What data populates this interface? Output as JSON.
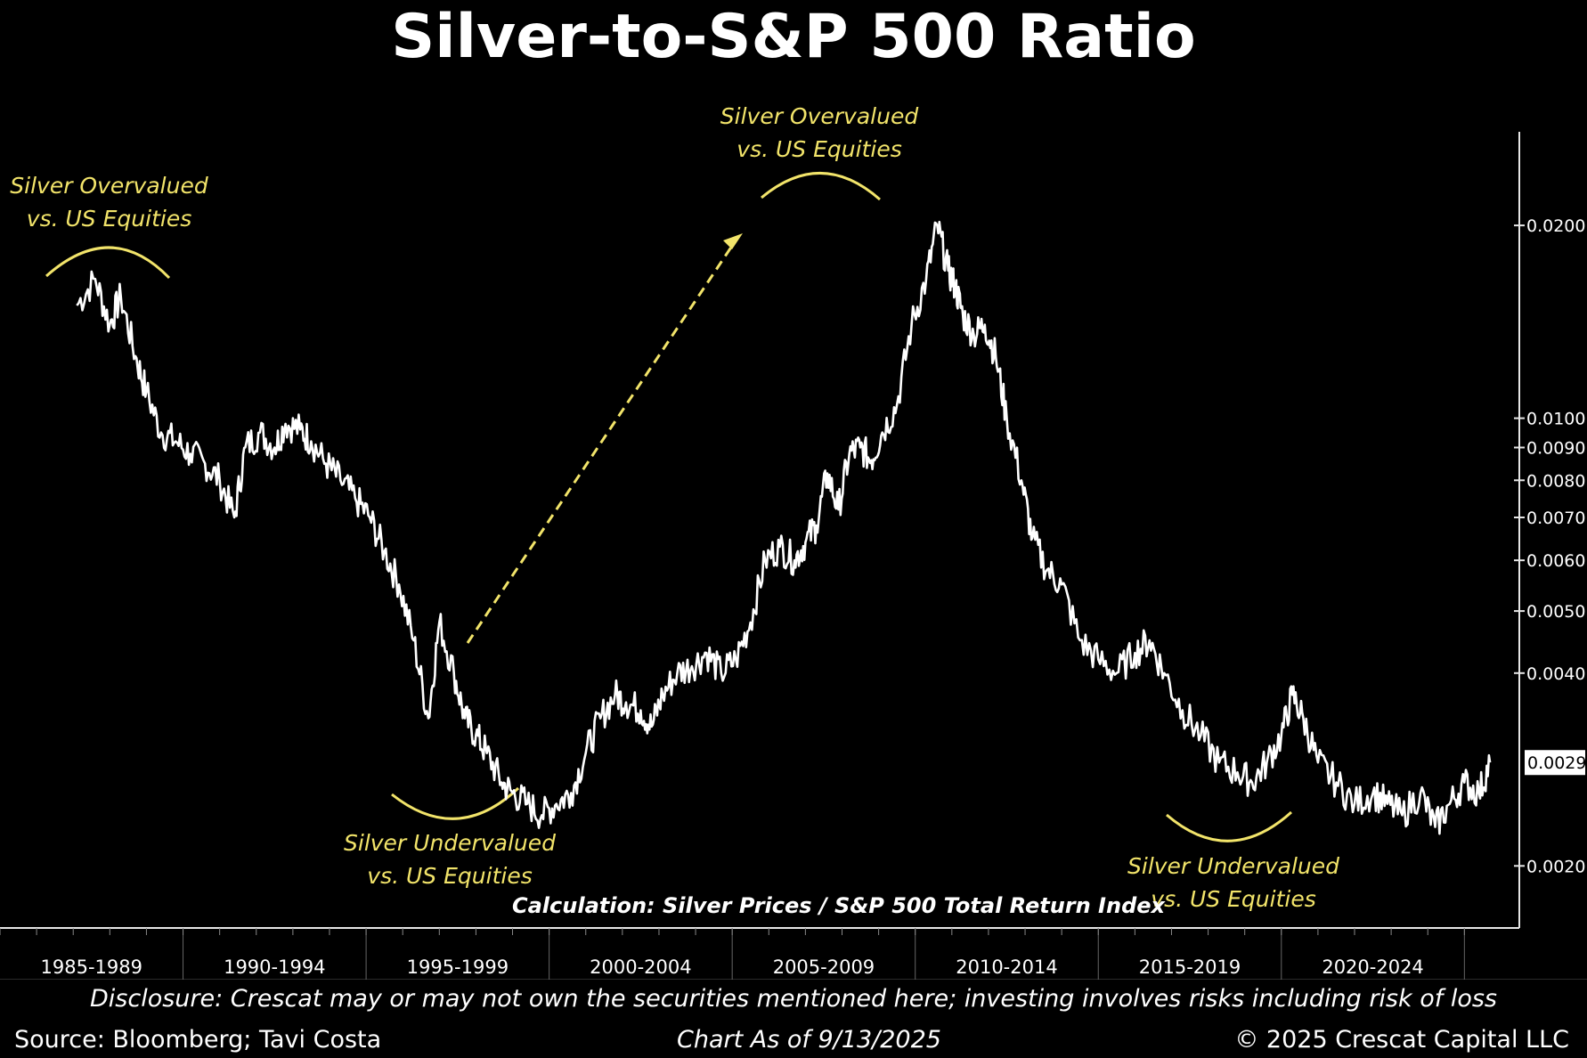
{
  "chart_data": {
    "type": "line",
    "title": "Silver-to-S&P 500 Ratio",
    "y_scale": "log",
    "ylim": [
      0.0016,
      0.028
    ],
    "y_ticks": [
      "0.0020",
      "0.0040",
      "0.0050",
      "0.0060",
      "0.0070",
      "0.0080",
      "0.0090",
      "0.0100",
      "0.0200"
    ],
    "y_tick_values": [
      0.002,
      0.004,
      0.005,
      0.006,
      0.007,
      0.008,
      0.009,
      0.01,
      0.02
    ],
    "last_value_label": "0.0029",
    "last_value": 0.0029,
    "x_categories": [
      "1985-1989",
      "1990-1994",
      "1995-1999",
      "2000-2004",
      "2005-2009",
      "2010-2014",
      "2015-2019",
      "2020-2024"
    ],
    "xlim": [
      1985.0,
      2026.5
    ],
    "series": [
      {
        "x": [
          1987.1,
          1987.6,
          1988.0,
          1988.3,
          1988.7,
          1989.0,
          1989.4,
          1989.8,
          1990.2,
          1990.6,
          1991.0,
          1991.4,
          1991.7,
          1992.1,
          1992.5,
          1992.8,
          1993.2,
          1993.5,
          1993.9,
          1994.3,
          1994.7,
          1995.1,
          1995.5,
          1995.9,
          1996.3,
          1996.7,
          1997.0,
          1997.4,
          1997.7,
          1998.0,
          1998.3,
          1998.7,
          1999.0,
          1999.4,
          1999.8,
          2000.2,
          2000.6,
          2001.0,
          2001.4,
          2001.8,
          2002.1,
          2002.5,
          2002.8,
          2003.1,
          2003.5,
          2003.9,
          2004.3,
          2004.7,
          2005.1,
          2005.5,
          2005.9,
          2006.3,
          2006.7,
          2007.0,
          2007.3,
          2007.6,
          2007.9,
          2008.2,
          2008.5,
          2008.8,
          2009.1,
          2009.5,
          2009.9,
          2010.3,
          2010.6,
          2010.9,
          2011.1,
          2011.3,
          2011.6,
          2011.9,
          2012.2,
          2012.5,
          2012.9,
          2013.2,
          2013.6,
          2014.0,
          2014.5,
          2015.0,
          2015.5,
          2016.0,
          2016.4,
          2016.8,
          2017.3,
          2017.8,
          2018.3,
          2018.8,
          2019.2,
          2019.6,
          2020.0,
          2020.3,
          2020.6,
          2021.0,
          2021.5,
          2022.0,
          2022.5,
          2022.9,
          2023.3,
          2023.8,
          2024.2,
          2024.6,
          2025.0,
          2025.4,
          2025.7
        ],
        "y": [
          0.015,
          0.0165,
          0.014,
          0.0155,
          0.0125,
          0.011,
          0.0095,
          0.0092,
          0.0088,
          0.0085,
          0.008,
          0.007,
          0.009,
          0.0095,
          0.009,
          0.0098,
          0.0096,
          0.0092,
          0.0085,
          0.008,
          0.0075,
          0.007,
          0.0062,
          0.0055,
          0.0045,
          0.0034,
          0.0048,
          0.004,
          0.0034,
          0.0032,
          0.003,
          0.0027,
          0.0026,
          0.0025,
          0.0024,
          0.0025,
          0.0026,
          0.003,
          0.0034,
          0.0037,
          0.0036,
          0.0035,
          0.0033,
          0.0037,
          0.004,
          0.0041,
          0.0043,
          0.004,
          0.0042,
          0.0048,
          0.006,
          0.0063,
          0.006,
          0.0064,
          0.0068,
          0.0082,
          0.0072,
          0.0088,
          0.009,
          0.0086,
          0.0095,
          0.0105,
          0.014,
          0.0165,
          0.02,
          0.017,
          0.016,
          0.0145,
          0.0135,
          0.014,
          0.0125,
          0.01,
          0.008,
          0.0065,
          0.0058,
          0.0055,
          0.0045,
          0.0042,
          0.004,
          0.0043,
          0.0045,
          0.004,
          0.0035,
          0.0032,
          0.0029,
          0.0028,
          0.0027,
          0.0029,
          0.0032,
          0.0037,
          0.0034,
          0.0029,
          0.0027,
          0.0025,
          0.0026,
          0.0025,
          0.0024,
          0.0026,
          0.0023,
          0.0025,
          0.0027,
          0.0026,
          0.0029
        ]
      }
    ]
  },
  "annotations": {
    "top_left": [
      "Silver Overvalued",
      "vs. US Equities"
    ],
    "top_center": [
      "Silver Overvalued",
      "vs. US Equities"
    ],
    "bottom_left": [
      "Silver Undervalued",
      "vs. US Equities"
    ],
    "bottom_right": [
      "Silver Undervalued",
      "vs. US Equities"
    ]
  },
  "calculation_note": "Calculation: Silver Prices / S&P 500 Total Return Index",
  "footer": {
    "disclosure": "Disclosure: Crescat may or may not own the securities mentioned here; investing involves risks including risk of loss",
    "source": "Source: Bloomberg; Tavi Costa",
    "as_of": "Chart As of 9/13/2025",
    "copyright": "© 2025 Crescat Capital LLC"
  },
  "colors": {
    "background": "#000000",
    "line": "#ffffff",
    "annotation": "#f2e46a"
  }
}
